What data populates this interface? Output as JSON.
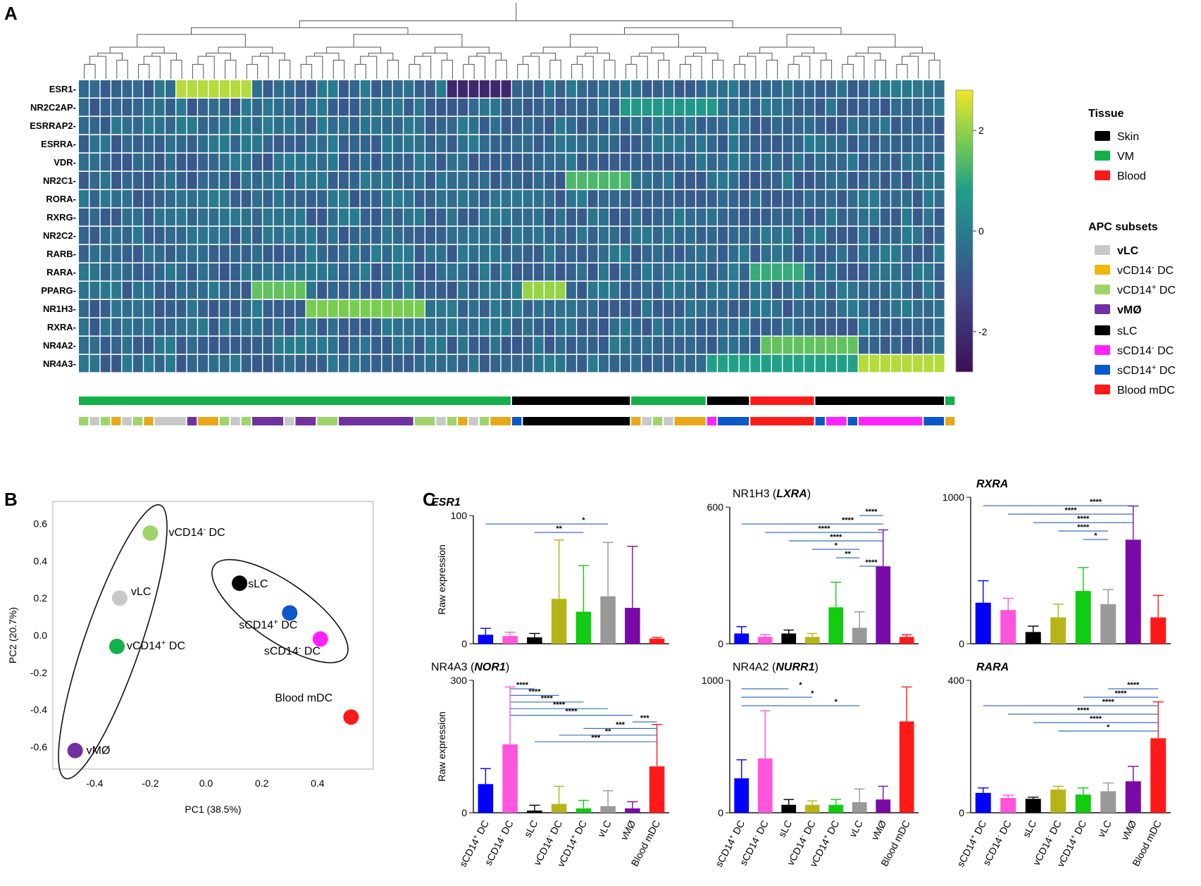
{
  "panels": {
    "a": "A",
    "b": "B",
    "c": "C"
  },
  "colors": {
    "vLC": "#c8c8c8",
    "vCD14neg": "#e8a81a",
    "vCD14pos": "#9fd46b",
    "vMO": "#7030a0",
    "sLC": "#000000",
    "sCD14neg": "#ff22ff",
    "sCD14pos": "#0a58ca",
    "bloodmDC": "#ff1a1a",
    "skin": "#000000",
    "vm": "#14b04a",
    "blood": "#ff1a1a",
    "sig": "#3a6fc4"
  },
  "heatmap": {
    "genes": [
      "ESR1-",
      "NR2C2AP-",
      "ESRRAP2-",
      "ESRRA-",
      "VDR-",
      "NR2C1-",
      "RORA-",
      "RXRG-",
      "NR2C2-",
      "RARB-",
      "RARA-",
      "PPARG-",
      "NR1H3-",
      "RXRA-",
      "NR4A2-",
      "NR4A3-"
    ],
    "n_samples": 80,
    "colorbar": {
      "ticks": [
        "2",
        "0",
        "-2"
      ]
    },
    "tissue_bar": [
      {
        "tissue": "VM",
        "count": 40
      },
      {
        "tissue": "Skin",
        "count": 11
      },
      {
        "tissue": "VM",
        "count": 7
      },
      {
        "tissue": "Skin",
        "count": 4
      },
      {
        "tissue": "Blood",
        "count": 6
      },
      {
        "tissue": "Skin",
        "count": 12
      },
      {
        "tissue": "VM",
        "count": 1
      }
    ],
    "subset_bar": [
      {
        "subset": "vCD14pos",
        "count": 1
      },
      {
        "subset": "vLC",
        "count": 1
      },
      {
        "subset": "vCD14pos",
        "count": 1
      },
      {
        "subset": "vCD14neg",
        "count": 1
      },
      {
        "subset": "vLC",
        "count": 1
      },
      {
        "subset": "vCD14pos",
        "count": 1
      },
      {
        "subset": "vCD14neg",
        "count": 1
      },
      {
        "subset": "vLC",
        "count": 3
      },
      {
        "subset": "vMO",
        "count": 1
      },
      {
        "subset": "vCD14neg",
        "count": 2
      },
      {
        "subset": "vCD14pos",
        "count": 1
      },
      {
        "subset": "vLC",
        "count": 1
      },
      {
        "subset": "vCD14pos",
        "count": 1
      },
      {
        "subset": "vMO",
        "count": 3
      },
      {
        "subset": "vLC",
        "count": 1
      },
      {
        "subset": "vMO",
        "count": 2
      },
      {
        "subset": "vCD14pos",
        "count": 2
      },
      {
        "subset": "vMO",
        "count": 7
      },
      {
        "subset": "vCD14pos",
        "count": 2
      },
      {
        "subset": "vLC",
        "count": 1
      },
      {
        "subset": "vCD14pos",
        "count": 1
      },
      {
        "subset": "vCD14neg",
        "count": 1
      },
      {
        "subset": "vLC",
        "count": 1
      },
      {
        "subset": "vCD14pos",
        "count": 1
      },
      {
        "subset": "vCD14neg",
        "count": 2
      },
      {
        "subset": "sCD14pos",
        "count": 1
      },
      {
        "subset": "sLC",
        "count": 10
      },
      {
        "subset": "vCD14neg",
        "count": 1
      },
      {
        "subset": "vLC",
        "count": 1
      },
      {
        "subset": "vCD14pos",
        "count": 1
      },
      {
        "subset": "vLC",
        "count": 1
      },
      {
        "subset": "vCD14neg",
        "count": 3
      },
      {
        "subset": "sCD14neg",
        "count": 1
      },
      {
        "subset": "sCD14pos",
        "count": 3
      },
      {
        "subset": "bloodmDC",
        "count": 6
      },
      {
        "subset": "sCD14pos",
        "count": 1
      },
      {
        "subset": "sCD14neg",
        "count": 2
      },
      {
        "subset": "sCD14pos",
        "count": 1
      },
      {
        "subset": "sCD14neg",
        "count": 6
      },
      {
        "subset": "sCD14pos",
        "count": 2
      },
      {
        "subset": "vCD14neg",
        "count": 1
      }
    ]
  },
  "legend": {
    "tissue_title": "Tissue",
    "tissue": [
      {
        "label": "Skin",
        "color": "#000000"
      },
      {
        "label": "VM",
        "color": "#14b04a"
      },
      {
        "label": "Blood",
        "color": "#ff1a1a"
      }
    ],
    "subsets_title": "APC subsets",
    "v_subsets": [
      {
        "pre": "vLC",
        "sup": "",
        "post": "",
        "color": "#c8c8c8"
      },
      {
        "pre": "vCD14",
        "sup": "-",
        "post": " DC",
        "color": "#f2b705"
      },
      {
        "pre": "vCD14",
        "sup": "+",
        "post": " DC",
        "color": "#9fd46b"
      },
      {
        "pre": "vMØ",
        "sup": "",
        "post": "",
        "color": "#7030a0"
      }
    ],
    "s_subsets": [
      {
        "pre": "sLC",
        "sup": "",
        "post": "",
        "color": "#000000"
      },
      {
        "pre": "sCD14",
        "sup": "-",
        "post": " DC",
        "color": "#ff22ff"
      },
      {
        "pre": "sCD14",
        "sup": "+",
        "post": " DC",
        "color": "#0a58ca"
      },
      {
        "pre": "Blood mDC",
        "sup": "",
        "post": "",
        "color": "#ff1a1a"
      }
    ]
  },
  "chart_data": [
    {
      "id": "pca",
      "type": "scatter",
      "xlabel": "PC1 (38.5%)",
      "ylabel": "PC2 (20.7%)",
      "xlim": [
        -0.55,
        0.6
      ],
      "ylim": [
        -0.72,
        0.72
      ],
      "xticks": [
        "-0.4",
        "-0.2",
        "0.0",
        "0.2",
        "0.4"
      ],
      "yticks": [
        "0.6",
        "0.4",
        "0.2",
        "0.0",
        "-0.2",
        "-0.4",
        "-0.6"
      ],
      "points": [
        {
          "pre": "vCD14",
          "sup": "-",
          "post": " DC",
          "x": -0.2,
          "y": 0.55,
          "color": "#9fd46b"
        },
        {
          "pre": "vLC",
          "sup": "",
          "post": "",
          "x": -0.31,
          "y": 0.2,
          "color": "#c8c8c8"
        },
        {
          "pre": "vCD14",
          "sup": "+",
          "post": " DC",
          "x": -0.32,
          "y": -0.06,
          "color": "#14b04a"
        },
        {
          "pre": "vMØ",
          "sup": "",
          "post": "",
          "x": -0.47,
          "y": -0.62,
          "color": "#7030a0"
        },
        {
          "pre": "sLC",
          "sup": "",
          "post": "",
          "x": 0.12,
          "y": 0.28,
          "color": "#000000"
        },
        {
          "pre": "sCD14",
          "sup": "+",
          "post": " DC",
          "x": 0.3,
          "y": 0.12,
          "color": "#0a58ca"
        },
        {
          "pre": "sCD14",
          "sup": "-",
          "post": " DC",
          "x": 0.41,
          "y": -0.02,
          "color": "#ff22ff"
        },
        {
          "pre": "Blood mDC",
          "sup": "",
          "post": "",
          "x": 0.52,
          "y": -0.44,
          "color": "#ff1a1a"
        }
      ]
    },
    {
      "id": "esr1",
      "type": "bar",
      "title": "ESR1",
      "title_italic": true,
      "ylabel": "Raw expression",
      "ylim": [
        0,
        100
      ],
      "yticks": [
        "100",
        "0"
      ],
      "values": [
        7,
        6,
        5,
        35,
        25,
        37,
        28,
        4
      ],
      "errors": [
        5,
        3,
        3,
        46,
        36,
        42,
        48,
        1
      ],
      "sig": [
        {
          "from": 0,
          "to": 5,
          "text": "*"
        },
        {
          "from": 2,
          "to": 4,
          "text": "**"
        }
      ]
    },
    {
      "id": "nr1h3",
      "type": "bar",
      "title": "NR1H3 (LXRA)",
      "title_gene": "NR1H3",
      "title_alias": "LXRA",
      "ylabel": "",
      "ylim": [
        0,
        600
      ],
      "yticks": [
        "600",
        "0"
      ],
      "values": [
        45,
        30,
        45,
        30,
        160,
        70,
        340,
        30
      ],
      "errors": [
        30,
        10,
        15,
        15,
        110,
        70,
        160,
        10
      ],
      "sig": [
        {
          "from": 5,
          "to": 6,
          "text": "****"
        },
        {
          "from": 0,
          "to": 6,
          "text": "****"
        },
        {
          "from": 1,
          "to": 6,
          "text": "****"
        },
        {
          "from": 2,
          "to": 6,
          "text": "****"
        },
        {
          "from": 3,
          "to": 5,
          "text": "*"
        },
        {
          "from": 4,
          "to": 5,
          "text": "**"
        },
        {
          "from": 5,
          "to": 6,
          "text": "****"
        }
      ]
    },
    {
      "id": "rxra",
      "type": "bar",
      "title": "RXRA",
      "title_italic": true,
      "ylabel": "",
      "ylim": [
        0,
        1000
      ],
      "yticks": [
        "1000",
        "0"
      ],
      "values": [
        280,
        230,
        80,
        180,
        360,
        270,
        710,
        180
      ],
      "errors": [
        150,
        80,
        40,
        90,
        160,
        100,
        230,
        150
      ],
      "sig": [
        {
          "from": 0,
          "to": 6,
          "text": "****"
        },
        {
          "from": 1,
          "to": 6,
          "text": "****"
        },
        {
          "from": 2,
          "to": 6,
          "text": "****"
        },
        {
          "from": 3,
          "to": 5,
          "text": "****"
        },
        {
          "from": 4,
          "to": 5,
          "text": "*"
        }
      ]
    },
    {
      "id": "nr4a3",
      "type": "bar",
      "title": "NR4A3 (NOR1)",
      "title_gene": "NR4A3",
      "title_alias": "NOR1",
      "ylabel": "Raw expression",
      "ylim": [
        0,
        300
      ],
      "yticks": [
        "300",
        "0"
      ],
      "values": [
        65,
        155,
        5,
        20,
        10,
        15,
        10,
        105
      ],
      "errors": [
        35,
        130,
        12,
        40,
        18,
        35,
        15,
        95
      ],
      "sig": [
        {
          "from": 1,
          "to": 2,
          "text": "****"
        },
        {
          "from": 1,
          "to": 3,
          "text": "****"
        },
        {
          "from": 1,
          "to": 4,
          "text": "****"
        },
        {
          "from": 1,
          "to": 5,
          "text": "****"
        },
        {
          "from": 1,
          "to": 6,
          "text": "****"
        },
        {
          "from": 6,
          "to": 7,
          "text": "***"
        },
        {
          "from": 4,
          "to": 7,
          "text": "***"
        },
        {
          "from": 3,
          "to": 7,
          "text": "**"
        },
        {
          "from": 2,
          "to": 7,
          "text": "***"
        }
      ]
    },
    {
      "id": "nr4a2",
      "type": "bar",
      "title": "NR4A2 (NURR1)",
      "title_gene": "NR4A2",
      "title_alias": "NURR1",
      "ylabel": "",
      "ylim": [
        0,
        1000
      ],
      "yticks": [
        "1000",
        "0"
      ],
      "values": [
        260,
        410,
        60,
        60,
        60,
        80,
        100,
        690
      ],
      "errors": [
        140,
        360,
        40,
        30,
        40,
        100,
        100,
        260
      ],
      "sig": [
        {
          "from": 0,
          "to": 2,
          "text": "*"
        },
        {
          "from": 0,
          "to": 3,
          "text": "*"
        },
        {
          "from": 0,
          "to": 5,
          "text": "*"
        }
      ]
    },
    {
      "id": "rara",
      "type": "bar",
      "title": "RARA",
      "title_italic": true,
      "ylabel": "",
      "ylim": [
        0,
        400
      ],
      "yticks": [
        "400",
        "0"
      ],
      "values": [
        60,
        45,
        42,
        70,
        55,
        65,
        95,
        225
      ],
      "errors": [
        15,
        8,
        5,
        10,
        20,
        25,
        45,
        110
      ],
      "sig": [
        {
          "from": 5,
          "to": 7,
          "text": "****"
        },
        {
          "from": 4,
          "to": 7,
          "text": "****"
        },
        {
          "from": 0,
          "to": 7,
          "text": "****"
        },
        {
          "from": 1,
          "to": 7,
          "text": "****"
        },
        {
          "from": 2,
          "to": 7,
          "text": "****"
        },
        {
          "from": 3,
          "to": 7,
          "text": "*"
        }
      ]
    }
  ],
  "bar_categories": [
    {
      "pre": "sCD14",
      "sup": "+",
      "post": " DC",
      "color": "#0000ff"
    },
    {
      "pre": "sCD14",
      "sup": "-",
      "post": " DC",
      "color": "#ff55dd"
    },
    {
      "pre": "sLC",
      "sup": "",
      "post": "",
      "color": "#000000"
    },
    {
      "pre": "vCD14",
      "sup": "-",
      "post": " DC",
      "color": "#b5b51a"
    },
    {
      "pre": "vCD14",
      "sup": "+",
      "post": " DC",
      "color": "#11cc11"
    },
    {
      "pre": "vLC",
      "sup": "",
      "post": "",
      "color": "#999999"
    },
    {
      "pre": "vMØ",
      "sup": "",
      "post": "",
      "color": "#7a0aa8"
    },
    {
      "pre": "Blood mDC",
      "sup": "",
      "post": "",
      "color": "#ff1a1a"
    }
  ]
}
